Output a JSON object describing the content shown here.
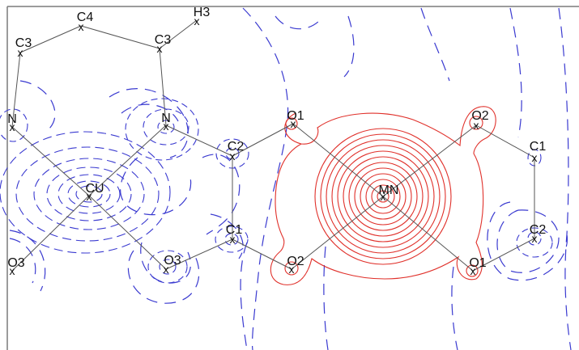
{
  "diagram": {
    "atoms": {
      "c4": {
        "label": "C4",
        "marker": "x"
      },
      "h3": {
        "label": "H3",
        "marker": "x"
      },
      "c3_left": {
        "label": "C3",
        "marker": "x"
      },
      "c3_right": {
        "label": "C3",
        "marker": "x"
      },
      "n_left": {
        "label": "N",
        "marker": "x"
      },
      "n_right": {
        "label": "N",
        "marker": "x"
      },
      "cu": {
        "label": "CU",
        "marker": "x"
      },
      "o3_left": {
        "label": "O3",
        "marker": "x"
      },
      "o3_mid": {
        "label": "O3",
        "marker": "x"
      },
      "c2_left": {
        "label": "C2",
        "marker": "x"
      },
      "c1_left": {
        "label": "C1",
        "marker": "x"
      },
      "o1_top": {
        "label": "O1",
        "marker": "x"
      },
      "o2_bottom": {
        "label": "O2",
        "marker": "x"
      },
      "mn": {
        "label": "MN",
        "marker": "x"
      },
      "o2_top": {
        "label": "O2",
        "marker": "x"
      },
      "o1_bottom": {
        "label": "O1",
        "marker": "x"
      },
      "c1_right": {
        "label": "C1",
        "marker": "x"
      },
      "c2_right": {
        "label": "C2",
        "marker": "x"
      }
    },
    "colors": {
      "bond": "#555555",
      "label": "#111111",
      "positive_contour": "#e0302a",
      "negative_contour": "#3a3ad0",
      "border": "#7a7a7a"
    }
  }
}
